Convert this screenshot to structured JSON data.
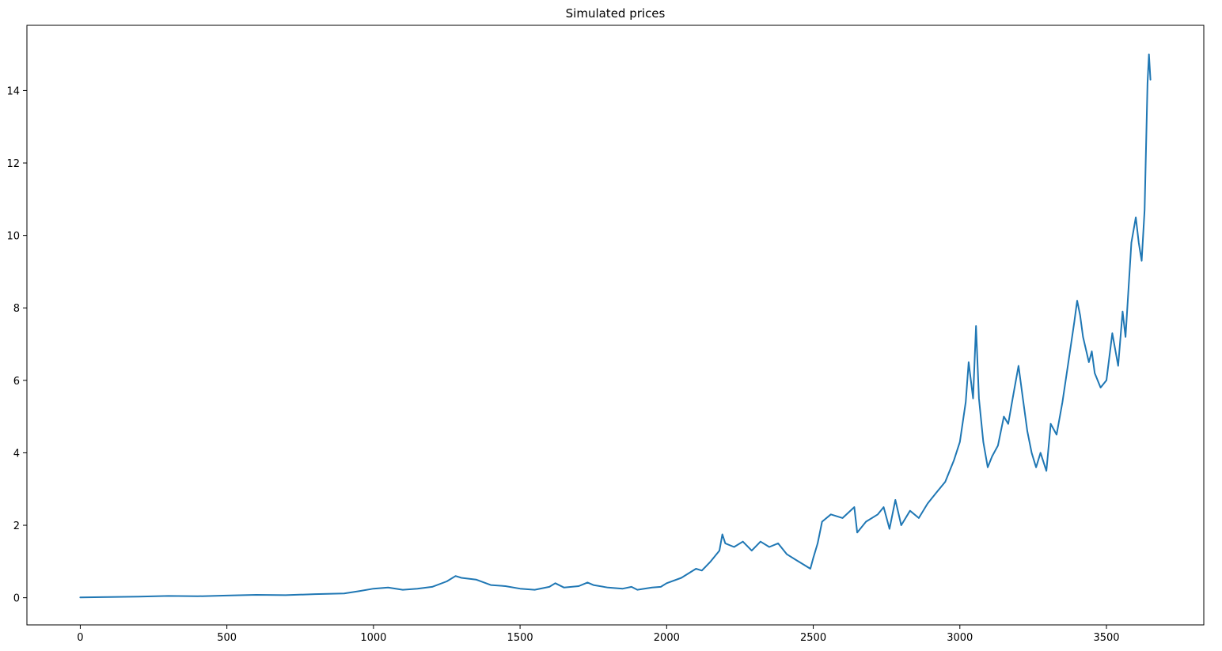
{
  "chart_data": {
    "type": "line",
    "title": "Simulated prices",
    "xlabel": "",
    "ylabel": "",
    "xlim": [
      -182,
      3832
    ],
    "ylim": [
      -0.75,
      15.8
    ],
    "xticks": [
      0,
      500,
      1000,
      1500,
      2000,
      2500,
      3000,
      3500
    ],
    "yticks": [
      0,
      2,
      4,
      6,
      8,
      10,
      12,
      14
    ],
    "grid": false,
    "legend": "none",
    "series": [
      {
        "color": "#1f77b4",
        "x": [
          0,
          100,
          200,
          300,
          400,
          500,
          600,
          700,
          800,
          900,
          950,
          1000,
          1050,
          1100,
          1150,
          1200,
          1250,
          1280,
          1300,
          1350,
          1400,
          1450,
          1500,
          1550,
          1600,
          1620,
          1650,
          1700,
          1730,
          1750,
          1800,
          1850,
          1880,
          1900,
          1950,
          1980,
          2000,
          2050,
          2100,
          2120,
          2150,
          2180,
          2190,
          2200,
          2230,
          2260,
          2290,
          2320,
          2350,
          2380,
          2410,
          2440,
          2470,
          2490,
          2500,
          2515,
          2530,
          2560,
          2600,
          2640,
          2650,
          2680,
          2720,
          2740,
          2760,
          2780,
          2800,
          2830,
          2860,
          2890,
          2920,
          2950,
          2980,
          3000,
          3020,
          3030,
          3045,
          3055,
          3065,
          3080,
          3095,
          3110,
          3130,
          3150,
          3165,
          3180,
          3200,
          3215,
          3230,
          3245,
          3260,
          3275,
          3295,
          3310,
          3330,
          3350,
          3370,
          3390,
          3400,
          3410,
          3420,
          3440,
          3450,
          3460,
          3480,
          3500,
          3520,
          3540,
          3555,
          3565,
          3575,
          3585,
          3600,
          3610,
          3620,
          3630,
          3640,
          3645,
          3650
        ],
        "y": [
          0.01,
          0.02,
          0.03,
          0.05,
          0.04,
          0.06,
          0.08,
          0.07,
          0.1,
          0.12,
          0.18,
          0.25,
          0.28,
          0.22,
          0.25,
          0.3,
          0.45,
          0.6,
          0.55,
          0.5,
          0.35,
          0.32,
          0.25,
          0.22,
          0.3,
          0.4,
          0.28,
          0.32,
          0.42,
          0.35,
          0.28,
          0.25,
          0.3,
          0.22,
          0.28,
          0.3,
          0.4,
          0.55,
          0.8,
          0.75,
          1.0,
          1.3,
          1.75,
          1.5,
          1.4,
          1.55,
          1.3,
          1.55,
          1.4,
          1.5,
          1.2,
          1.05,
          0.9,
          0.8,
          1.1,
          1.5,
          2.1,
          2.3,
          2.2,
          2.5,
          1.8,
          2.1,
          2.3,
          2.5,
          1.9,
          2.7,
          2.0,
          2.4,
          2.2,
          2.6,
          2.9,
          3.2,
          3.8,
          4.3,
          5.4,
          6.5,
          5.5,
          7.5,
          5.5,
          4.3,
          3.6,
          3.9,
          4.2,
          5.0,
          4.8,
          5.5,
          6.4,
          5.5,
          4.6,
          4.0,
          3.6,
          4.0,
          3.5,
          4.8,
          4.5,
          5.4,
          6.5,
          7.6,
          8.2,
          7.8,
          7.2,
          6.5,
          6.8,
          6.2,
          5.8,
          6.0,
          7.3,
          6.4,
          7.9,
          7.2,
          8.5,
          9.8,
          10.5,
          9.8,
          9.3,
          10.7,
          14.2,
          15.0,
          14.3
        ]
      }
    ]
  }
}
